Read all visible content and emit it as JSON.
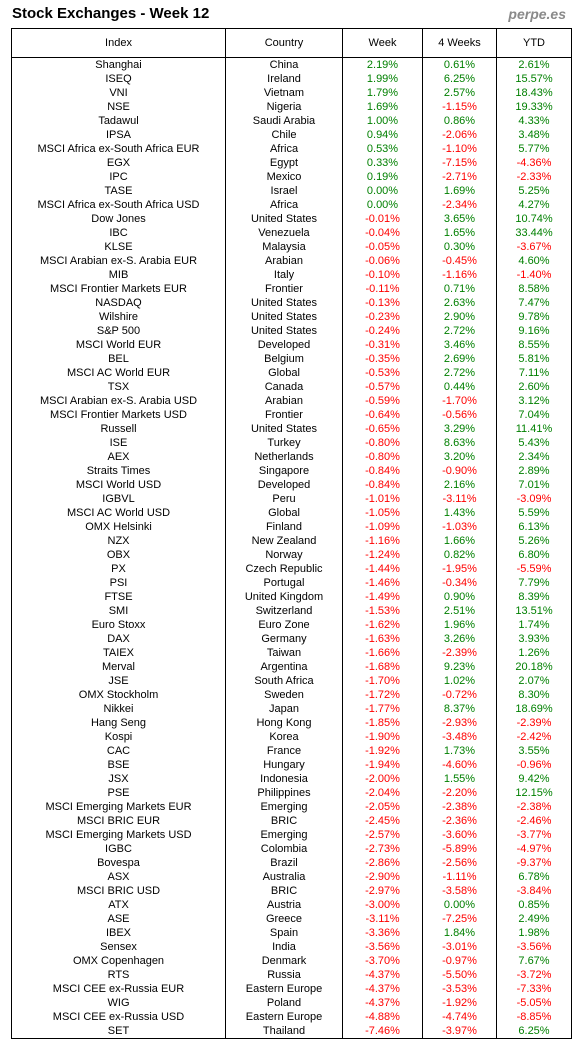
{
  "title": "Stock Exchanges - Week 12",
  "brand": "perpe.es",
  "colors": {
    "positive": "#008000",
    "negative": "#ff0000"
  },
  "headers": [
    "Index",
    "Country",
    "Week",
    "4 Weeks",
    "YTD"
  ],
  "rows": [
    [
      "Shanghai",
      "China",
      "2.19%",
      "0.61%",
      "2.61%"
    ],
    [
      "ISEQ",
      "Ireland",
      "1.99%",
      "6.25%",
      "15.57%"
    ],
    [
      "VNI",
      "Vietnam",
      "1.79%",
      "2.57%",
      "18.43%"
    ],
    [
      "NSE",
      "Nigeria",
      "1.69%",
      "-1.15%",
      "19.33%"
    ],
    [
      "Tadawul",
      "Saudi Arabia",
      "1.00%",
      "0.86%",
      "4.33%"
    ],
    [
      "IPSA",
      "Chile",
      "0.94%",
      "-2.06%",
      "3.48%"
    ],
    [
      "MSCI Africa ex-South Africa EUR",
      "Africa",
      "0.53%",
      "-1.10%",
      "5.77%"
    ],
    [
      "EGX",
      "Egypt",
      "0.33%",
      "-7.15%",
      "-4.36%"
    ],
    [
      "IPC",
      "Mexico",
      "0.19%",
      "-2.71%",
      "-2.33%"
    ],
    [
      "TASE",
      "Israel",
      "0.00%",
      "1.69%",
      "5.25%"
    ],
    [
      "MSCI Africa ex-South Africa USD",
      "Africa",
      "0.00%",
      "-2.34%",
      "4.27%"
    ],
    [
      "Dow Jones",
      "United States",
      "-0.01%",
      "3.65%",
      "10.74%"
    ],
    [
      "IBC",
      "Venezuela",
      "-0.04%",
      "1.65%",
      "33.44%"
    ],
    [
      "KLSE",
      "Malaysia",
      "-0.05%",
      "0.30%",
      "-3.67%"
    ],
    [
      "MSCI Arabian ex-S. Arabia EUR",
      "Arabian",
      "-0.06%",
      "-0.45%",
      "4.60%"
    ],
    [
      "MIB",
      "Italy",
      "-0.10%",
      "-1.16%",
      "-1.40%"
    ],
    [
      "MSCI Frontier Markets EUR",
      "Frontier",
      "-0.11%",
      "0.71%",
      "8.58%"
    ],
    [
      "NASDAQ",
      "United States",
      "-0.13%",
      "2.63%",
      "7.47%"
    ],
    [
      "Wilshire",
      "United States",
      "-0.23%",
      "2.90%",
      "9.78%"
    ],
    [
      "S&P 500",
      "United States",
      "-0.24%",
      "2.72%",
      "9.16%"
    ],
    [
      "MSCI World EUR",
      "Developed",
      "-0.31%",
      "3.46%",
      "8.55%"
    ],
    [
      "BEL",
      "Belgium",
      "-0.35%",
      "2.69%",
      "5.81%"
    ],
    [
      "MSCI AC World EUR",
      "Global",
      "-0.53%",
      "2.72%",
      "7.11%"
    ],
    [
      "TSX",
      "Canada",
      "-0.57%",
      "0.44%",
      "2.60%"
    ],
    [
      "MSCI Arabian ex-S. Arabia USD",
      "Arabian",
      "-0.59%",
      "-1.70%",
      "3.12%"
    ],
    [
      "MSCI Frontier Markets USD",
      "Frontier",
      "-0.64%",
      "-0.56%",
      "7.04%"
    ],
    [
      "Russell",
      "United States",
      "-0.65%",
      "3.29%",
      "11.41%"
    ],
    [
      "ISE",
      "Turkey",
      "-0.80%",
      "8.63%",
      "5.43%"
    ],
    [
      "AEX",
      "Netherlands",
      "-0.80%",
      "3.20%",
      "2.34%"
    ],
    [
      "Straits Times",
      "Singapore",
      "-0.84%",
      "-0.90%",
      "2.89%"
    ],
    [
      "MSCI World USD",
      "Developed",
      "-0.84%",
      "2.16%",
      "7.01%"
    ],
    [
      "IGBVL",
      "Peru",
      "-1.01%",
      "-3.11%",
      "-3.09%"
    ],
    [
      "MSCI AC World USD",
      "Global",
      "-1.05%",
      "1.43%",
      "5.59%"
    ],
    [
      "OMX Helsinki",
      "Finland",
      "-1.09%",
      "-1.03%",
      "6.13%"
    ],
    [
      "NZX",
      "New Zealand",
      "-1.16%",
      "1.66%",
      "5.26%"
    ],
    [
      "OBX",
      "Norway",
      "-1.24%",
      "0.82%",
      "6.80%"
    ],
    [
      "PX",
      "Czech Republic",
      "-1.44%",
      "-1.95%",
      "-5.59%"
    ],
    [
      "PSI",
      "Portugal",
      "-1.46%",
      "-0.34%",
      "7.79%"
    ],
    [
      "FTSE",
      "United Kingdom",
      "-1.49%",
      "0.90%",
      "8.39%"
    ],
    [
      "SMI",
      "Switzerland",
      "-1.53%",
      "2.51%",
      "13.51%"
    ],
    [
      "Euro Stoxx",
      "Euro Zone",
      "-1.62%",
      "1.96%",
      "1.74%"
    ],
    [
      "DAX",
      "Germany",
      "-1.63%",
      "3.26%",
      "3.93%"
    ],
    [
      "TAIEX",
      "Taiwan",
      "-1.66%",
      "-2.39%",
      "1.26%"
    ],
    [
      "Merval",
      "Argentina",
      "-1.68%",
      "9.23%",
      "20.18%"
    ],
    [
      "JSE",
      "South Africa",
      "-1.70%",
      "1.02%",
      "2.07%"
    ],
    [
      "OMX Stockholm",
      "Sweden",
      "-1.72%",
      "-0.72%",
      "8.30%"
    ],
    [
      "Nikkei",
      "Japan",
      "-1.77%",
      "8.37%",
      "18.69%"
    ],
    [
      "Hang Seng",
      "Hong Kong",
      "-1.85%",
      "-2.93%",
      "-2.39%"
    ],
    [
      "Kospi",
      "Korea",
      "-1.90%",
      "-3.48%",
      "-2.42%"
    ],
    [
      "CAC",
      "France",
      "-1.92%",
      "1.73%",
      "3.55%"
    ],
    [
      "BSE",
      "Hungary",
      "-1.94%",
      "-4.60%",
      "-0.96%"
    ],
    [
      "JSX",
      "Indonesia",
      "-2.00%",
      "1.55%",
      "9.42%"
    ],
    [
      "PSE",
      "Philippines",
      "-2.04%",
      "-2.20%",
      "12.15%"
    ],
    [
      "MSCI Emerging Markets EUR",
      "Emerging",
      "-2.05%",
      "-2.38%",
      "-2.38%"
    ],
    [
      "MSCI BRIC EUR",
      "BRIC",
      "-2.45%",
      "-2.36%",
      "-2.46%"
    ],
    [
      "MSCI Emerging Markets USD",
      "Emerging",
      "-2.57%",
      "-3.60%",
      "-3.77%"
    ],
    [
      "IGBC",
      "Colombia",
      "-2.73%",
      "-5.89%",
      "-4.97%"
    ],
    [
      "Bovespa",
      "Brazil",
      "-2.86%",
      "-2.56%",
      "-9.37%"
    ],
    [
      "ASX",
      "Australia",
      "-2.90%",
      "-1.11%",
      "6.78%"
    ],
    [
      "MSCI BRIC USD",
      "BRIC",
      "-2.97%",
      "-3.58%",
      "-3.84%"
    ],
    [
      "ATX",
      "Austria",
      "-3.00%",
      "0.00%",
      "0.85%"
    ],
    [
      "ASE",
      "Greece",
      "-3.11%",
      "-7.25%",
      "2.49%"
    ],
    [
      "IBEX",
      "Spain",
      "-3.36%",
      "1.84%",
      "1.98%"
    ],
    [
      "Sensex",
      "India",
      "-3.56%",
      "-3.01%",
      "-3.56%"
    ],
    [
      "OMX Copenhagen",
      "Denmark",
      "-3.70%",
      "-0.97%",
      "7.67%"
    ],
    [
      "RTS",
      "Russia",
      "-4.37%",
      "-5.50%",
      "-3.72%"
    ],
    [
      "MSCI CEE ex-Russia EUR",
      "Eastern Europe",
      "-4.37%",
      "-3.53%",
      "-7.33%"
    ],
    [
      "WIG",
      "Poland",
      "-4.37%",
      "-1.92%",
      "-5.05%"
    ],
    [
      "MSCI CEE ex-Russia USD",
      "Eastern Europe",
      "-4.88%",
      "-4.74%",
      "-8.85%"
    ],
    [
      "SET",
      "Thailand",
      "-7.46%",
      "-3.97%",
      "6.25%"
    ]
  ]
}
